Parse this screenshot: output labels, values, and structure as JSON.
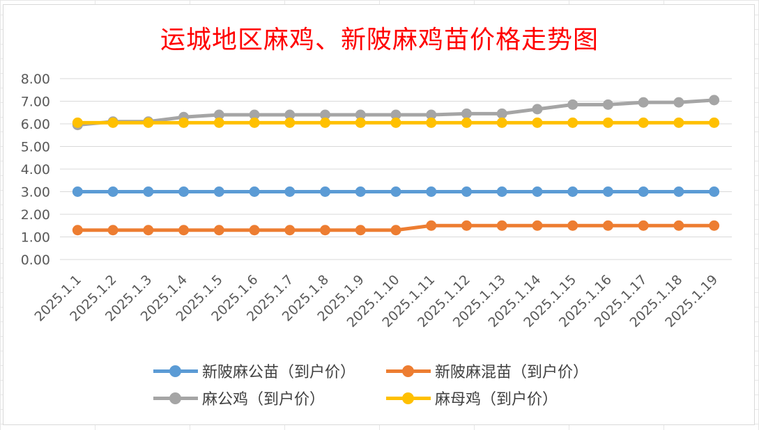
{
  "chart_data": {
    "type": "line",
    "title": "运城地区麻鸡、新陂麻鸡苗价格走势图",
    "xlabel": "",
    "ylabel": "",
    "ylim": [
      0,
      8
    ],
    "yticks": [
      "0.00",
      "1.00",
      "2.00",
      "3.00",
      "4.00",
      "5.00",
      "6.00",
      "7.00",
      "8.00"
    ],
    "grid": true,
    "legend_position": "bottom",
    "categories": [
      "2025.1.1",
      "2025.1.2",
      "2025.1.3",
      "2025.1.4",
      "2025.1.5",
      "2025.1.6",
      "2025.1.7",
      "2025.1.8",
      "2025.1.9",
      "2025.1.10",
      "2025.1.11",
      "2025.1.12",
      "2025.1.13",
      "2025.1.14",
      "2025.1.15",
      "2025.1.16",
      "2025.1.17",
      "2025.1.18",
      "2025.1.19"
    ],
    "series": [
      {
        "name": "新陂麻公苗（到户价）",
        "color": "#5b9bd5",
        "values": [
          3.0,
          3.0,
          3.0,
          3.0,
          3.0,
          3.0,
          3.0,
          3.0,
          3.0,
          3.0,
          3.0,
          3.0,
          3.0,
          3.0,
          3.0,
          3.0,
          3.0,
          3.0,
          3.0
        ]
      },
      {
        "name": "新陂麻混苗（到户价）",
        "color": "#ed7d31",
        "values": [
          1.3,
          1.3,
          1.3,
          1.3,
          1.3,
          1.3,
          1.3,
          1.3,
          1.3,
          1.3,
          1.5,
          1.5,
          1.5,
          1.5,
          1.5,
          1.5,
          1.5,
          1.5,
          1.5
        ]
      },
      {
        "name": "麻公鸡（到户价）",
        "color": "#a5a5a5",
        "values": [
          5.95,
          6.1,
          6.1,
          6.3,
          6.4,
          6.4,
          6.4,
          6.4,
          6.4,
          6.4,
          6.4,
          6.45,
          6.45,
          6.65,
          6.85,
          6.85,
          6.95,
          6.95,
          7.05
        ]
      },
      {
        "name": "麻母鸡（到户价）",
        "color": "#ffc000",
        "values": [
          6.05,
          6.05,
          6.05,
          6.05,
          6.05,
          6.05,
          6.05,
          6.05,
          6.05,
          6.05,
          6.05,
          6.05,
          6.05,
          6.05,
          6.05,
          6.05,
          6.05,
          6.05,
          6.05
        ]
      }
    ]
  }
}
